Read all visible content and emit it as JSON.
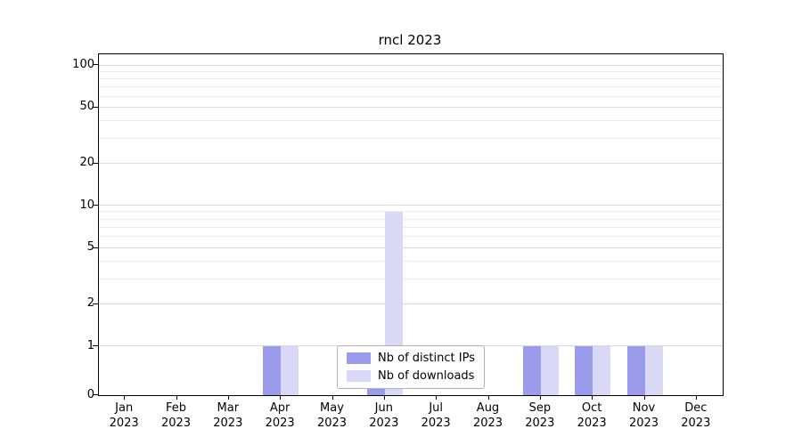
{
  "chart_data": {
    "type": "bar",
    "title": "rncl 2023",
    "categories": [
      "Jan\n2023",
      "Feb\n2023",
      "Mar\n2023",
      "Apr\n2023",
      "May\n2023",
      "Jun\n2023",
      "Jul\n2023",
      "Aug\n2023",
      "Sep\n2023",
      "Oct\n2023",
      "Nov\n2023",
      "Dec\n2023"
    ],
    "series": [
      {
        "name": "Nb of distinct IPs",
        "color": "#9b9beb",
        "values": [
          0,
          0,
          0,
          1,
          0,
          1,
          0,
          0,
          1,
          1,
          1,
          0
        ]
      },
      {
        "name": "Nb of downloads",
        "color": "#d9d9f7",
        "values": [
          0,
          0,
          0,
          1,
          0,
          9,
          0,
          0,
          1,
          1,
          1,
          0
        ]
      }
    ],
    "yticks_major": [
      0,
      1,
      2,
      5,
      10,
      20,
      50,
      100
    ],
    "yticks_minor": [
      3,
      4,
      6,
      7,
      8,
      9,
      30,
      40,
      60,
      70,
      80,
      90
    ],
    "ymax": 120,
    "scale": "symlog",
    "grid": "on",
    "legend_position": "lower center",
    "xlabel": "",
    "ylabel": ""
  }
}
